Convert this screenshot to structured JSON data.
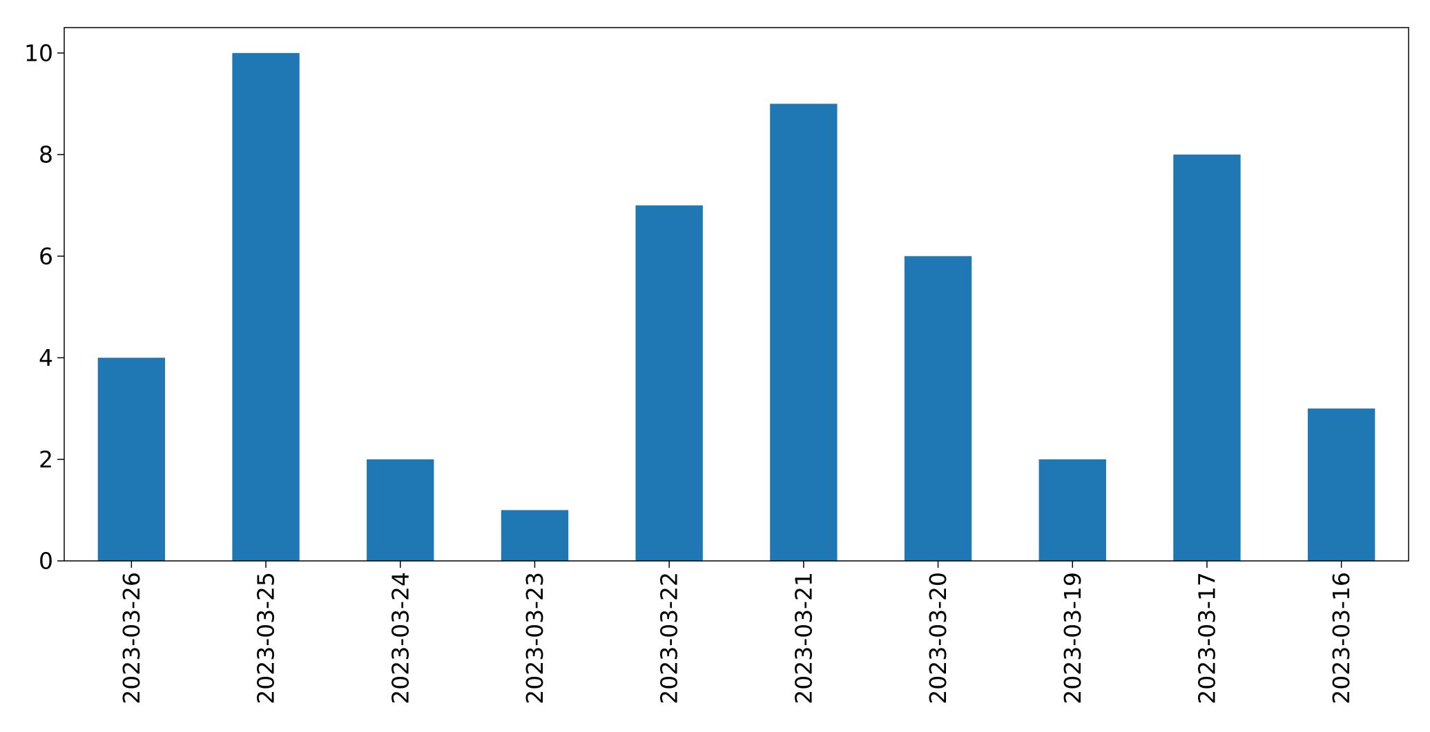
{
  "chart_data": {
    "type": "bar",
    "categories": [
      "2023-03-26",
      "2023-03-25",
      "2023-03-24",
      "2023-03-23",
      "2023-03-22",
      "2023-03-21",
      "2023-03-20",
      "2023-03-19",
      "2023-03-17",
      "2023-03-16"
    ],
    "series": [
      {
        "values": [
          4,
          10,
          2,
          1,
          7,
          9,
          6,
          2,
          8,
          3
        ]
      }
    ],
    "title": "",
    "xlabel": "",
    "ylabel": "",
    "ylim": [
      0,
      10.5
    ],
    "yticks": [
      0,
      2,
      4,
      6,
      8,
      10
    ],
    "grid": false,
    "legend": "none",
    "bar_color": "#1f77b4",
    "x_tick_rotation": "vertical"
  }
}
